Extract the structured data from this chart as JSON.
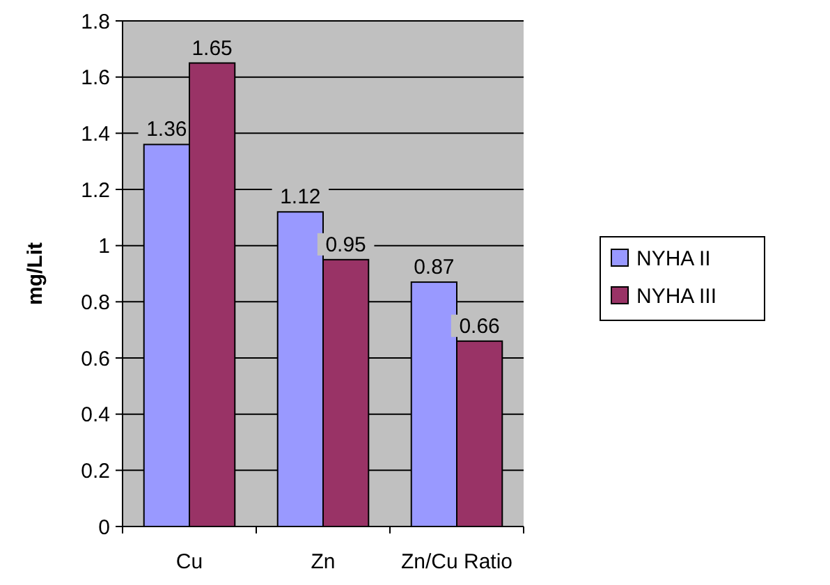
{
  "chart_data": {
    "type": "bar",
    "ylabel": "mg/Lit",
    "categories": [
      "Cu",
      "Zn",
      "Zn/Cu Ratio"
    ],
    "series": [
      {
        "name": "NYHA II",
        "color": "#9999ff",
        "values": [
          1.36,
          1.12,
          0.87
        ]
      },
      {
        "name": "NYHA III",
        "color": "#993366",
        "values": [
          1.65,
          0.95,
          0.66
        ]
      }
    ],
    "ylim": [
      0,
      1.8
    ],
    "yticks": [
      0,
      {
        "value": 0.2,
        "label": "0.2"
      },
      {
        "value": 0.4,
        "label": "0.4"
      },
      {
        "value": 0.6,
        "label": "0.6"
      },
      {
        "value": 0.8,
        "label": "0.8"
      },
      1,
      {
        "value": 1.2,
        "label": "1.2"
      },
      {
        "value": 1.4,
        "label": "1.4"
      },
      {
        "value": 1.6,
        "label": "1.6"
      },
      {
        "value": 1.8,
        "label": "1.8"
      }
    ],
    "grid": "y",
    "legend": "right",
    "data_labels": true
  }
}
